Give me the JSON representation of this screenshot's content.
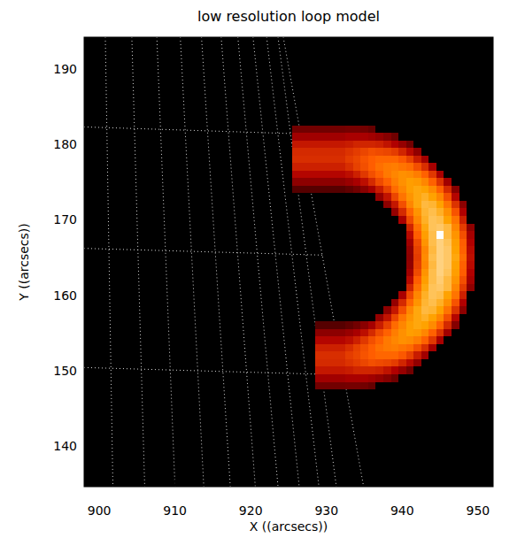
{
  "chart_data": {
    "type": "heatmap",
    "title": "low resolution loop model",
    "x_label": "X ((arcsecs))",
    "y_label": "Y ((arcsecs))",
    "xlim": [
      898,
      952
    ],
    "ylim": [
      134.6,
      194.2
    ],
    "xticks": [
      900,
      910,
      920,
      930,
      940,
      950
    ],
    "yticks": [
      140,
      150,
      160,
      170,
      180,
      190
    ],
    "grid": true,
    "limb_grid": {
      "longitudes": [
        [
          [
            900.8,
            194.2
          ],
          [
            901.8,
            134.6
          ]
        ],
        [
          [
            904.3,
            194.2
          ],
          [
            906.0,
            134.6
          ]
        ],
        [
          [
            907.6,
            194.2
          ],
          [
            910.0,
            134.6
          ]
        ],
        [
          [
            910.7,
            194.2
          ],
          [
            913.8,
            134.6
          ]
        ],
        [
          [
            913.5,
            194.2
          ],
          [
            917.3,
            134.6
          ]
        ],
        [
          [
            916.1,
            194.2
          ],
          [
            920.6,
            134.6
          ]
        ],
        [
          [
            918.3,
            194.2
          ],
          [
            923.6,
            134.6
          ]
        ],
        [
          [
            920.3,
            194.2
          ],
          [
            926.4,
            134.6
          ]
        ],
        [
          [
            922.1,
            194.2
          ],
          [
            929.0,
            134.6
          ]
        ],
        [
          [
            923.6,
            194.2
          ],
          [
            931.3,
            134.6
          ]
        ],
        [
          [
            924.3,
            194.2
          ],
          [
            934.9,
            134.6
          ]
        ]
      ],
      "latitudes": [
        [
          [
            898,
            182.3
          ],
          [
            926.0,
            181.4
          ]
        ],
        [
          [
            898,
            166.2
          ],
          [
            929.6,
            165.3
          ]
        ],
        [
          [
            898,
            150.4
          ],
          [
            933.0,
            149.4
          ]
        ]
      ]
    },
    "cells": {
      "color_range": [
        0,
        100
      ],
      "x": [
        926,
        927,
        928,
        929,
        930,
        931,
        932,
        933,
        934,
        935,
        936,
        937,
        938,
        939,
        940,
        941,
        942,
        943,
        944,
        945,
        946,
        947,
        948,
        949,
        950,
        951
      ],
      "y": [
        182,
        181,
        180,
        179,
        178,
        177,
        176,
        175,
        174,
        173,
        172,
        171,
        170,
        169,
        168,
        167,
        166,
        165,
        164,
        163,
        162,
        161,
        160,
        159,
        158,
        157,
        156,
        155,
        154,
        153,
        152,
        151,
        150,
        149,
        148
      ],
      "values": [
        [
          29,
          29,
          29,
          29,
          29,
          29,
          29,
          30,
          30,
          29,
          26,
          0,
          0,
          0,
          0,
          0,
          0,
          0,
          0,
          0,
          0,
          0,
          0,
          0,
          0,
          0
        ],
        [
          41,
          41,
          41,
          41,
          41,
          41,
          41,
          43,
          43,
          43,
          41,
          38,
          34,
          28,
          0,
          0,
          0,
          0,
          0,
          0,
          0,
          0,
          0,
          0,
          0,
          0
        ],
        [
          50,
          50,
          50,
          50,
          50,
          50,
          50,
          51,
          53,
          53,
          53,
          52,
          49,
          45,
          38,
          29,
          0,
          0,
          0,
          0,
          0,
          0,
          0,
          0,
          0,
          0
        ],
        [
          54,
          54,
          54,
          54,
          54,
          54,
          54,
          56,
          58,
          60,
          62,
          61,
          60,
          58,
          53,
          47,
          37,
          0,
          0,
          0,
          0,
          0,
          0,
          0,
          0,
          0
        ],
        [
          55,
          55,
          55,
          55,
          55,
          55,
          55,
          58,
          60,
          63,
          65,
          67,
          67,
          67,
          64,
          59,
          51,
          41,
          0,
          0,
          0,
          0,
          0,
          0,
          0,
          0
        ],
        [
          52,
          52,
          52,
          52,
          52,
          52,
          52,
          55,
          59,
          62,
          65,
          69,
          71,
          72,
          70,
          68,
          62,
          55,
          42,
          0,
          0,
          0,
          0,
          0,
          0,
          0
        ],
        [
          46,
          46,
          46,
          46,
          46,
          46,
          46,
          48,
          52,
          57,
          62,
          66,
          71,
          74,
          76,
          75,
          72,
          66,
          57,
          43,
          0,
          0,
          0,
          0,
          0,
          0
        ],
        [
          36,
          36,
          36,
          36,
          36,
          36,
          36,
          39,
          43,
          48,
          54,
          61,
          66,
          72,
          76,
          79,
          78,
          74,
          66,
          56,
          41,
          0,
          0,
          0,
          0,
          0
        ],
        [
          22,
          22,
          22,
          22,
          22,
          22,
          22,
          25,
          29,
          35,
          42,
          51,
          59,
          68,
          74,
          79,
          81,
          80,
          75,
          66,
          54,
          34,
          0,
          0,
          0,
          0
        ],
        [
          0,
          0,
          0,
          0,
          0,
          0,
          0,
          0,
          0,
          0,
          0,
          38,
          49,
          60,
          70,
          77,
          81,
          83,
          80,
          74,
          62,
          46,
          0,
          0,
          0,
          0
        ],
        [
          0,
          0,
          0,
          0,
          0,
          0,
          0,
          0,
          0,
          0,
          0,
          0,
          36,
          50,
          62,
          74,
          81,
          85,
          84,
          80,
          70,
          56,
          36,
          0,
          0,
          0
        ],
        [
          0,
          0,
          0,
          0,
          0,
          0,
          0,
          0,
          0,
          0,
          0,
          0,
          0,
          38,
          54,
          67,
          77,
          84,
          86,
          83,
          76,
          63,
          45,
          0,
          0,
          0
        ],
        [
          0,
          0,
          0,
          0,
          0,
          0,
          0,
          0,
          0,
          0,
          0,
          0,
          0,
          0,
          43,
          61,
          74,
          83,
          87,
          86,
          80,
          70,
          52,
          0,
          0,
          0
        ],
        [
          0,
          0,
          0,
          0,
          0,
          0,
          0,
          0,
          0,
          0,
          0,
          0,
          0,
          0,
          0,
          53,
          69,
          81,
          87,
          88,
          85,
          74,
          58,
          36,
          0,
          0
        ],
        [
          0,
          0,
          0,
          0,
          0,
          0,
          0,
          0,
          0,
          0,
          0,
          0,
          0,
          0,
          0,
          47,
          65,
          79,
          86,
          100,
          85,
          77,
          62,
          42,
          0,
          0
        ],
        [
          0,
          0,
          0,
          0,
          0,
          0,
          0,
          0,
          0,
          0,
          0,
          0,
          0,
          0,
          0,
          41,
          61,
          77,
          86,
          90,
          87,
          79,
          65,
          45,
          0,
          0
        ],
        [
          0,
          0,
          0,
          0,
          0,
          0,
          0,
          0,
          0,
          0,
          0,
          0,
          0,
          0,
          0,
          37,
          59,
          74,
          85,
          90,
          88,
          80,
          66,
          47,
          0,
          0
        ],
        [
          0,
          0,
          0,
          0,
          0,
          0,
          0,
          0,
          0,
          0,
          0,
          0,
          0,
          0,
          0,
          36,
          58,
          75,
          86,
          90,
          88,
          81,
          68,
          48,
          0,
          0
        ],
        [
          0,
          0,
          0,
          0,
          0,
          0,
          0,
          0,
          0,
          0,
          0,
          0,
          0,
          0,
          0,
          37,
          59,
          74,
          85,
          90,
          88,
          80,
          66,
          47,
          0,
          0
        ],
        [
          0,
          0,
          0,
          0,
          0,
          0,
          0,
          0,
          0,
          0,
          0,
          0,
          0,
          0,
          0,
          41,
          61,
          77,
          86,
          90,
          87,
          79,
          65,
          45,
          0,
          0
        ],
        [
          0,
          0,
          0,
          0,
          0,
          0,
          0,
          0,
          0,
          0,
          0,
          0,
          0,
          0,
          0,
          47,
          65,
          79,
          86,
          89,
          85,
          77,
          62,
          42,
          0,
          0
        ],
        [
          0,
          0,
          0,
          0,
          0,
          0,
          0,
          0,
          0,
          0,
          0,
          0,
          0,
          0,
          0,
          53,
          69,
          81,
          87,
          88,
          85,
          74,
          58,
          36,
          0,
          0
        ],
        [
          0,
          0,
          0,
          0,
          0,
          0,
          0,
          0,
          0,
          0,
          0,
          0,
          0,
          0,
          43,
          61,
          74,
          83,
          87,
          86,
          80,
          70,
          52,
          0,
          0,
          0
        ],
        [
          0,
          0,
          0,
          0,
          0,
          0,
          0,
          0,
          0,
          0,
          0,
          0,
          0,
          38,
          54,
          67,
          77,
          84,
          86,
          83,
          76,
          63,
          45,
          0,
          0,
          0
        ],
        [
          0,
          0,
          0,
          0,
          0,
          0,
          0,
          0,
          0,
          0,
          0,
          0,
          36,
          50,
          62,
          74,
          81,
          85,
          84,
          80,
          70,
          56,
          36,
          0,
          0,
          0
        ],
        [
          0,
          0,
          0,
          0,
          0,
          0,
          0,
          0,
          0,
          0,
          0,
          38,
          49,
          60,
          70,
          77,
          81,
          83,
          80,
          74,
          62,
          46,
          0,
          0,
          0,
          0
        ],
        [
          0,
          0,
          0,
          22,
          22,
          22,
          22,
          25,
          29,
          35,
          42,
          51,
          59,
          68,
          74,
          79,
          81,
          80,
          75,
          66,
          54,
          34,
          0,
          0,
          0,
          0
        ],
        [
          0,
          0,
          0,
          36,
          36,
          36,
          36,
          39,
          43,
          48,
          54,
          61,
          66,
          72,
          76,
          79,
          78,
          74,
          66,
          56,
          41,
          0,
          0,
          0,
          0,
          0
        ],
        [
          0,
          0,
          0,
          46,
          46,
          46,
          46,
          48,
          52,
          57,
          62,
          66,
          71,
          74,
          76,
          75,
          72,
          66,
          57,
          43,
          0,
          0,
          0,
          0,
          0,
          0
        ],
        [
          0,
          0,
          0,
          52,
          52,
          52,
          52,
          55,
          59,
          62,
          65,
          69,
          71,
          72,
          70,
          68,
          62,
          55,
          42,
          0,
          0,
          0,
          0,
          0,
          0,
          0
        ],
        [
          0,
          0,
          0,
          55,
          55,
          55,
          55,
          58,
          60,
          63,
          65,
          67,
          67,
          67,
          64,
          59,
          51,
          41,
          0,
          0,
          0,
          0,
          0,
          0,
          0,
          0
        ],
        [
          0,
          0,
          0,
          54,
          54,
          54,
          54,
          56,
          58,
          60,
          62,
          61,
          60,
          58,
          53,
          47,
          37,
          0,
          0,
          0,
          0,
          0,
          0,
          0,
          0,
          0
        ],
        [
          0,
          0,
          0,
          50,
          50,
          50,
          50,
          51,
          53,
          53,
          53,
          52,
          49,
          45,
          38,
          29,
          0,
          0,
          0,
          0,
          0,
          0,
          0,
          0,
          0,
          0
        ],
        [
          0,
          0,
          0,
          41,
          41,
          41,
          41,
          43,
          43,
          43,
          41,
          38,
          34,
          28,
          0,
          0,
          0,
          0,
          0,
          0,
          0,
          0,
          0,
          0,
          0,
          0
        ],
        [
          0,
          0,
          0,
          29,
          29,
          29,
          29,
          30,
          30,
          29,
          26,
          0,
          0,
          0,
          0,
          0,
          0,
          0,
          0,
          0,
          0,
          0,
          0,
          0,
          0,
          0
        ]
      ]
    }
  }
}
